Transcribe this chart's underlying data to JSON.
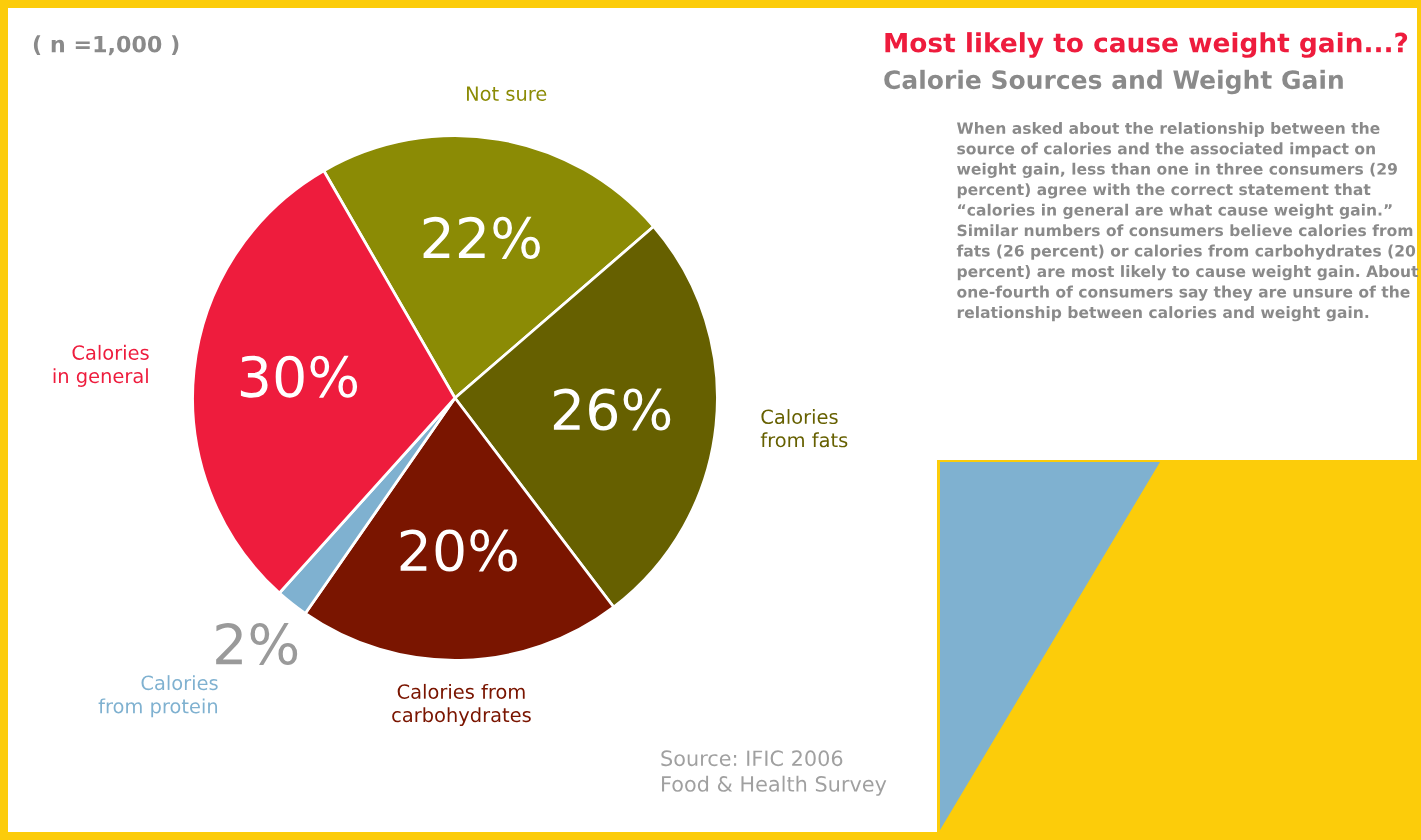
{
  "chart_data": {
    "type": "pie",
    "title": "Most likely to cause weight gain...?",
    "subtitle": "Calorie Sources and Weight Gain",
    "categories": [
      "Not sure",
      "Calories\nfrom fats",
      "Calories from\ncarbohydrates",
      "Calories\nfrom protein",
      "Calories\nin general"
    ],
    "values": [
      22,
      26,
      20,
      2,
      30
    ],
    "value_labels": [
      "22%",
      "26%",
      "20%",
      "2%",
      "30%"
    ],
    "colors": [
      "#8b8b05",
      "#666000",
      "#7a1500",
      "#7fb1d0",
      "#ee1c3d"
    ],
    "legend": false,
    "annotations": [
      "( n =1,000 )",
      "When asked about the relationship between the source of calories and the associated impact on weight gain, less than one in three consumers (29 percent) agree with the correct statement that “calories in general are what cause weight gain.” Similar numbers of consumers believe calories from fats (26 percent) or calories from carbohydrates (20 percent) are most likely to cause weight gain. About one-fourth of consumers say they are unsure of the relationship between calories and weight gain.",
      "Source: IFIC 2006\nFood & Health Survey"
    ]
  }
}
